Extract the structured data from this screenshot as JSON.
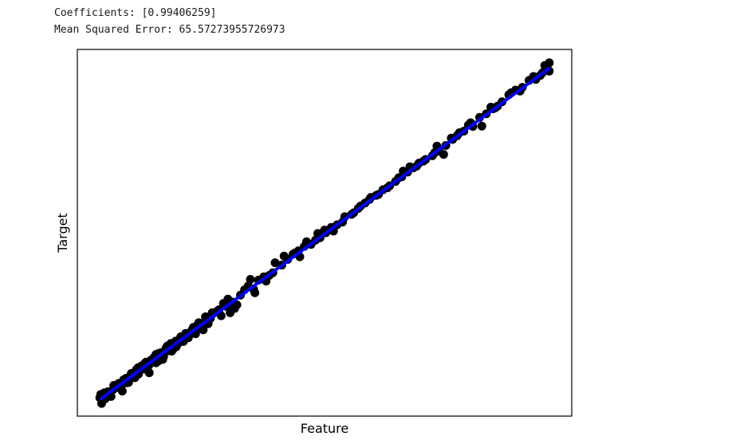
{
  "console": {
    "coefficients_line": "Coefficients: [0.99406259]",
    "mse_line": "Mean Squared Error: 65.57273955726973"
  },
  "chart_data": {
    "type": "scatter",
    "xlabel": "Feature",
    "ylabel": "Target",
    "show_ticks": false,
    "grid": false,
    "xlim": [
      -5,
      105
    ],
    "ylim": [
      -5,
      105
    ],
    "marker_color": "#000000",
    "line_color": "#0000ff",
    "fit_line": {
      "x": [
        0,
        100
      ],
      "y": [
        0,
        99.4
      ]
    },
    "points": {
      "x": [
        0,
        0.4,
        0.9,
        1.2,
        1.8,
        2.5,
        3.1,
        3.6,
        4.2,
        4.8,
        5.3,
        5.9,
        6.4,
        7.0,
        7.5,
        8.1,
        8.6,
        9.2,
        9.8,
        10.3,
        10.9,
        11.4,
        12.0,
        12.5,
        13.1,
        13.6,
        14.2,
        14.7,
        15.3,
        15.8,
        16.4,
        16.9,
        17.5,
        18.0,
        18.6,
        19.1,
        19.7,
        20.2,
        20.8,
        21.3,
        21.9,
        22.4,
        23.0,
        23.5,
        24.1,
        24.6,
        25.2,
        26.0,
        27.0,
        28.2,
        29.5,
        30.5,
        31.3,
        32.2,
        33.0,
        34.2,
        35.3,
        36.5,
        37.7,
        39.0,
        40.5,
        41.8,
        43.0,
        44.2,
        45.5,
        47.0,
        48.0,
        49.0,
        50.3,
        51.5,
        52.8,
        54.5,
        56.0,
        57.5,
        59.0,
        60.3,
        61.5,
        63.0,
        64.5,
        65.8,
        67.2,
        68.5,
        69.8,
        71.0,
        72.5,
        74.0,
        75.5,
        77.0,
        78.2,
        79.5,
        81.0,
        82.0,
        83.0,
        84.5,
        86.0,
        87.5,
        88.5,
        89.5,
        91.0,
        92.5,
        94.0,
        95.5,
        96.5,
        98.0,
        99.0,
        100.0,
        100.0,
        0.2,
        1.0,
        6.0,
        8.5,
        10.0,
        12.5,
        15.0,
        17.0,
        19.0,
        21.5,
        23.5,
        25.0,
        27.5,
        30.0,
        33.5,
        37.0,
        41.0,
        44.5,
        46.0,
        48.5,
        52.0,
        54.0,
        58.0,
        62.0,
        66.5,
        69.0,
        72.0,
        75.0,
        76.5,
        80.0,
        85.0,
        88.0,
        91.5,
        97.0,
        99.5,
        3.0,
        4.0,
        5.0,
        7.8,
        11.0,
        13.0,
        14.0,
        16.0,
        18.2,
        20.5,
        22.0,
        24.0,
        26.5,
        28.5,
        29.0,
        34.5,
        38.5,
        43.5,
        50.0,
        56.5,
        60.0,
        64.0,
        67.5,
        70.5,
        74.5,
        78.5,
        82.5,
        87.0,
        93.5,
        98.5
      ],
      "y": [
        0.5,
        -1.2,
        1.8,
        0.2,
        2.3,
        0.9,
        4.2,
        3.6,
        4.8,
        3.0,
        5.9,
        6.4,
        5.1,
        7.8,
        7.2,
        8.9,
        7.6,
        10.0,
        9.1,
        11.2,
        10.2,
        11.8,
        12.5,
        11.0,
        13.8,
        14.0,
        12.9,
        15.3,
        14.6,
        16.8,
        15.2,
        17.5,
        16.9,
        18.8,
        17.4,
        19.8,
        18.5,
        20.2,
        21.6,
        19.7,
        21.5,
        22.8,
        20.9,
        23.6,
        22.7,
        24.3,
        25.8,
        26.4,
        25.1,
        27.9,
        29.2,
        28.4,
        31.3,
        32.9,
        34.0,
        33.1,
        35.8,
        36.8,
        37.2,
        41.0,
        40.3,
        42.0,
        43.6,
        44.6,
        45.9,
        46.5,
        47.8,
        48.5,
        50.0,
        51.6,
        52.4,
        54.8,
        55.5,
        57.3,
        58.9,
        60.6,
        61.2,
        62.9,
        64.1,
        65.4,
        66.8,
        68.2,
        69.5,
        70.9,
        72.0,
        73.1,
        74.5,
        76.2,
        78.4,
        79.1,
        80.5,
        82.3,
        81.9,
        84.6,
        85.7,
        87.2,
        88.0,
        89.3,
        91.4,
        92.8,
        93.6,
        95.7,
        96.9,
        97.2,
        100.2,
        101.0,
        98.5,
        1.5,
        2.0,
        5.0,
        9.5,
        10.8,
        13.5,
        16.0,
        15.8,
        18.5,
        22.0,
        24.8,
        26.0,
        28.8,
        27.3,
        36.0,
        35.5,
        43.0,
        42.8,
        47.3,
        49.8,
        50.5,
        53.2,
        58.0,
        61.5,
        66.5,
        69.8,
        71.5,
        76.0,
        73.5,
        80.0,
        82.0,
        87.5,
        92.0,
        96.0,
        99.5,
        3.0,
        4.5,
        2.5,
        6.5,
        8.0,
        11.5,
        12.0,
        14.5,
        17.8,
        20.8,
        23.0,
        24.0,
        26.9,
        30.1,
        26.0,
        32.0,
        38.0,
        44.0,
        50.8,
        56.0,
        60.0,
        63.5,
        68.5,
        70.0,
        74.0,
        78.0,
        83.0,
        87.7,
        92.5,
        98.0
      ]
    }
  }
}
